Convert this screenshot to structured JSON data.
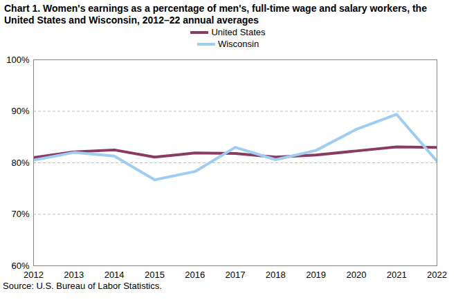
{
  "chart_data": {
    "type": "line",
    "title": "Chart 1. Women's earnings as a percentage of men's, full-time wage and salary workers, the United States and Wisconsin, 2012–22 annual averages",
    "source": "Source:  U.S. Bureau of Labor Statistics.",
    "x": [
      2012,
      2013,
      2014,
      2015,
      2016,
      2017,
      2018,
      2019,
      2020,
      2021,
      2022
    ],
    "series": [
      {
        "name": "United States",
        "color": "#8b3a62",
        "values": [
          81.0,
          82.1,
          82.5,
          81.1,
          81.9,
          81.8,
          81.1,
          81.5,
          82.3,
          83.1,
          83.0
        ]
      },
      {
        "name": "Wisconsin",
        "color": "#9fcdf2",
        "values": [
          80.5,
          82.0,
          81.3,
          76.7,
          78.3,
          83.0,
          80.6,
          82.4,
          86.5,
          89.4,
          80.3
        ]
      }
    ],
    "xlim": [
      2012,
      2022
    ],
    "xticks": [
      2012,
      2013,
      2014,
      2015,
      2016,
      2017,
      2018,
      2019,
      2020,
      2021,
      2022
    ],
    "ylim": [
      60,
      100
    ],
    "yticks": [
      {
        "value": 60,
        "label": "60%"
      },
      {
        "value": 70,
        "label": "70%"
      },
      {
        "value": 80,
        "label": "80%"
      },
      {
        "value": 90,
        "label": "90%"
      },
      {
        "value": 100,
        "label": "100%"
      }
    ],
    "grid": true,
    "legend": "top"
  }
}
